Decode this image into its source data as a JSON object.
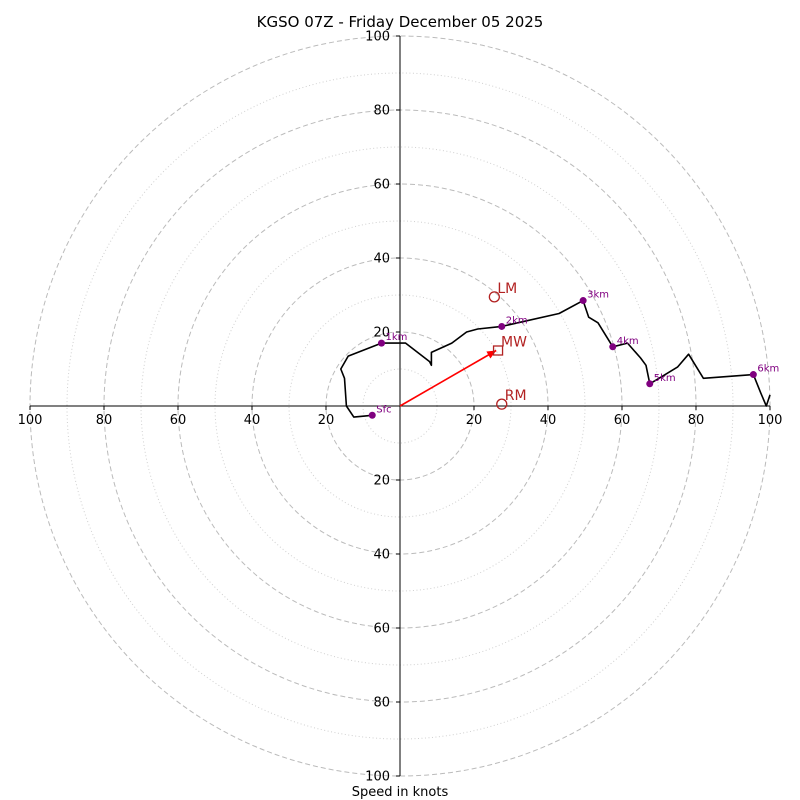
{
  "chart_data": {
    "type": "hodograph",
    "title": "KGSO 07Z - Friday December 05 2025",
    "xlabel": "Speed in knots",
    "xlim": [
      -100,
      100
    ],
    "ylim": [
      -100,
      100
    ],
    "tick_labels": [
      "100",
      "80",
      "60",
      "40",
      "20",
      "20",
      "40",
      "60",
      "80",
      "100"
    ],
    "x_tick_values": [
      -100,
      -80,
      -60,
      -40,
      -20,
      20,
      40,
      60,
      80,
      100
    ],
    "y_tick_values": [
      100,
      80,
      60,
      40,
      20,
      -20,
      -40,
      -60,
      -80,
      -100
    ],
    "rings_dashed": [
      20,
      40,
      60,
      80,
      100
    ],
    "rings_dotted": [
      10,
      30,
      50,
      70,
      90
    ],
    "grid": true,
    "hodograph_trace": [
      [
        -7.5,
        -2.5
      ],
      [
        -12.5,
        -3
      ],
      [
        -14.5,
        0
      ],
      [
        -15,
        7.5
      ],
      [
        -16,
        10
      ],
      [
        -14,
        13.5
      ],
      [
        -5,
        17
      ],
      [
        1.5,
        17
      ],
      [
        8,
        12
      ],
      [
        8.5,
        11
      ],
      [
        8.5,
        14.5
      ],
      [
        14,
        17
      ],
      [
        18,
        20
      ],
      [
        21,
        20.8
      ],
      [
        27.5,
        21.5
      ],
      [
        43,
        25
      ],
      [
        49.5,
        28.5
      ],
      [
        51,
        24
      ],
      [
        53.5,
        22.5
      ],
      [
        57.5,
        16
      ],
      [
        61.5,
        17
      ],
      [
        65,
        13
      ],
      [
        66.5,
        11
      ],
      [
        67.5,
        6
      ],
      [
        70,
        7.5
      ],
      [
        75,
        10.5
      ],
      [
        78,
        14
      ],
      [
        82,
        7.5
      ],
      [
        95.5,
        8.5
      ],
      [
        97.5,
        3.5
      ],
      [
        99,
        0
      ],
      [
        100,
        3
      ]
    ],
    "height_markers": [
      {
        "label": "Sfc",
        "u": -7.5,
        "v": -2.5
      },
      {
        "label": "1km",
        "u": -5,
        "v": 17
      },
      {
        "label": "2km",
        "u": 27.5,
        "v": 21.5
      },
      {
        "label": "3km",
        "u": 49.5,
        "v": 28.5
      },
      {
        "label": "4km",
        "u": 57.5,
        "v": 16
      },
      {
        "label": "5km",
        "u": 67.5,
        "v": 6
      },
      {
        "label": "6km",
        "u": 95.5,
        "v": 8.5
      }
    ],
    "storm_motion": [
      {
        "label": "LM",
        "u": 25.5,
        "v": 29.5,
        "marker": "circle"
      },
      {
        "label": "MW",
        "u": 26.5,
        "v": 15,
        "marker": "square"
      },
      {
        "label": "RM",
        "u": 27.5,
        "v": 0.5,
        "marker": "circle"
      }
    ],
    "shear_vector": {
      "from": [
        0,
        0
      ],
      "to": [
        26,
        15
      ]
    },
    "colors": {
      "trace": "#000000",
      "height_marker": "#800080",
      "storm_motion": "#b22222",
      "shear_vector": "#ff0000",
      "ring": "#bbbbbb",
      "axis": "#000000"
    }
  }
}
